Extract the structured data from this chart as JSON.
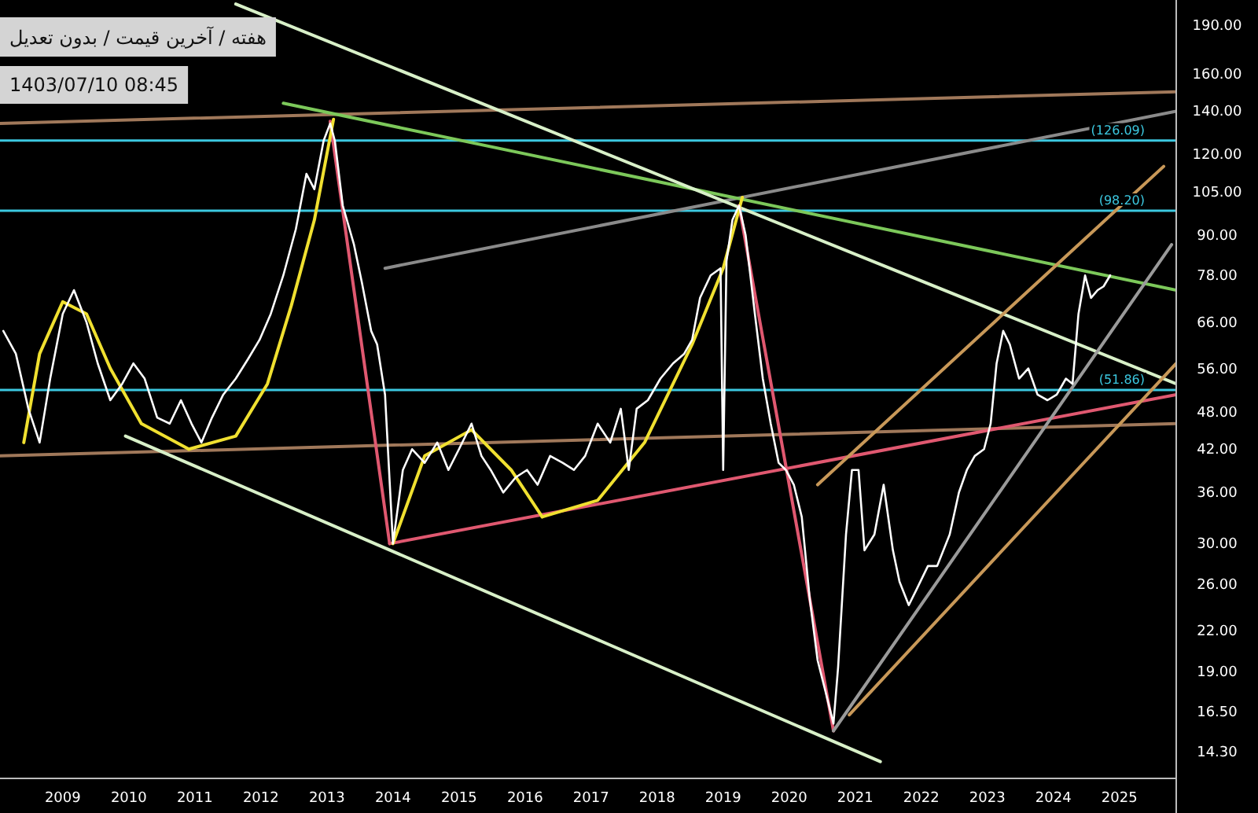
{
  "chart_data": {
    "type": "line",
    "log": "y",
    "grid": false,
    "marker": "none",
    "line_style": "solid",
    "annotations": [
      "هفته / آخرین قیمت / بدون تعدیل",
      "1403/07/10 08:45"
    ],
    "xlim": [
      2008.05,
      2025.86
    ],
    "xticks": [
      2009,
      2010,
      2011,
      2012,
      2013,
      2014,
      2015,
      2016,
      2017,
      2018,
      2019,
      2020,
      2021,
      2022,
      2023,
      2024,
      2025
    ],
    "ylim": [
      13,
      208
    ],
    "yticks": [
      {
        "value": 14.3,
        "label": "14.30"
      },
      {
        "value": 16.5,
        "label": "16.50"
      },
      {
        "value": 19,
        "label": "19.00"
      },
      {
        "value": 22,
        "label": "22.00"
      },
      {
        "value": 26,
        "label": "26.00"
      },
      {
        "value": 30,
        "label": "30.00"
      },
      {
        "value": 36,
        "label": "36.00"
      },
      {
        "value": 42,
        "label": "42.00"
      },
      {
        "value": 48,
        "label": "48.00"
      },
      {
        "value": 56,
        "label": "56.00"
      },
      {
        "value": 66,
        "label": "66.00"
      },
      {
        "value": 78,
        "label": "78.00"
      },
      {
        "value": 90,
        "label": "90.00"
      },
      {
        "value": 105,
        "label": "105.00"
      },
      {
        "value": 120,
        "label": "120.00"
      },
      {
        "value": 140,
        "label": "140.00"
      },
      {
        "value": 160,
        "label": "160.00"
      },
      {
        "value": 190,
        "label": "190.00"
      }
    ],
    "ref_lines": [
      {
        "axis": "y",
        "value": 126.09,
        "label": "(126.09)",
        "color": "#3cc8e0"
      },
      {
        "axis": "y",
        "value": 98.2,
        "label": "(98.20)",
        "color": "#3cc8e0"
      },
      {
        "axis": "y",
        "value": 51.86,
        "label": "(51.86)",
        "color": "#3cc8e0"
      }
    ],
    "series": [
      {
        "type": "line",
        "color": "#a0785a",
        "x": [
          2008.05,
          2025.86
        ],
        "values": [
          134,
          150
        ]
      },
      {
        "type": "line",
        "color": "#a0785a",
        "x": [
          2008.05,
          2025.86
        ],
        "values": [
          41,
          46
        ]
      },
      {
        "type": "line",
        "color": "#8a8a8a",
        "x": [
          2013.88,
          2025.86
        ],
        "values": [
          80,
          140
        ]
      },
      {
        "type": "line",
        "color": "#7cc85a",
        "x": [
          2012.34,
          2025.86
        ],
        "values": [
          144,
          74
        ]
      },
      {
        "type": "line",
        "color": "#d8f0c8",
        "x": [
          2011.62,
          2025.86
        ],
        "values": [
          205,
          53
        ]
      },
      {
        "type": "line",
        "color": "#d8f0c8",
        "x": [
          2009.95,
          2021.38
        ],
        "values": [
          44,
          13.8
        ]
      },
      {
        "type": "line",
        "color": "#e05870",
        "x": [
          2013.95,
          2025.86
        ],
        "values": [
          30,
          51
        ]
      },
      {
        "type": "line",
        "color": "#e05870",
        "x": [
          2013.05,
          2013.95
        ],
        "values": [
          135,
          30
        ]
      },
      {
        "type": "line",
        "color": "#e05870",
        "x": [
          2019.24,
          2020.67
        ],
        "values": [
          100,
          15.4
        ]
      },
      {
        "type": "line",
        "color": "#c89858",
        "x": [
          2020.43,
          2025.67
        ],
        "values": [
          37,
          115
        ]
      },
      {
        "type": "line",
        "color": "#c89858",
        "x": [
          2020.91,
          2025.86
        ],
        "values": [
          16.3,
          57
        ]
      },
      {
        "type": "line",
        "color": "#9a9a9a",
        "x": [
          2020.67,
          2025.79
        ],
        "values": [
          15.4,
          87
        ]
      },
      {
        "type": "line",
        "color": "#f0e030",
        "x": [
          2008.41,
          2008.65,
          2009.0,
          2009.36,
          2009.72,
          2010.19,
          2010.91
        ],
        "values": [
          43,
          59,
          71,
          68,
          56,
          46,
          42
        ]
      },
      {
        "type": "line",
        "color": "#f0e030",
        "x": [
          2010.91,
          2011.62,
          2012.1,
          2012.46,
          2012.81,
          2013.1
        ],
        "values": [
          42,
          44,
          53,
          70,
          95,
          136
        ]
      },
      {
        "type": "line",
        "color": "#f0e030",
        "x": [
          2014.0,
          2014.48,
          2015.19,
          2015.79,
          2016.26
        ],
        "values": [
          30,
          41,
          45,
          39,
          33
        ]
      },
      {
        "type": "line",
        "color": "#f0e030",
        "x": [
          2016.26,
          2017.1,
          2017.81,
          2018.53,
          2019.0,
          2019.29
        ],
        "values": [
          33,
          35,
          43,
          61,
          80,
          103
        ]
      },
      {
        "type": "line",
        "color": "#ffffff",
        "x": [
          2008.1,
          2008.29,
          2008.48,
          2008.65,
          2008.81,
          2009.0,
          2009.17,
          2009.36,
          2009.53,
          2009.72,
          2009.9,
          2010.07,
          2010.24,
          2010.43,
          2010.62,
          2010.79,
          2010.95,
          2011.1,
          2011.26,
          2011.43,
          2011.62,
          2011.81,
          2011.98,
          2012.15,
          2012.34,
          2012.53,
          2012.69,
          2012.81,
          2012.95,
          2013.05,
          2013.12,
          2013.24,
          2013.41,
          2013.53,
          2013.67,
          2013.76,
          2013.88,
          2014.0,
          2014.15,
          2014.29,
          2014.48,
          2014.67,
          2014.84,
          2015.0,
          2015.19,
          2015.34,
          2015.48,
          2015.67,
          2015.86,
          2016.03,
          2016.19,
          2016.38,
          2016.57,
          2016.74,
          2016.91,
          2017.1,
          2017.29,
          2017.45,
          2017.57,
          2017.69,
          2017.86,
          2018.05,
          2018.24,
          2018.41,
          2018.53,
          2018.65,
          2018.81,
          2018.96,
          2019.0,
          2019.05,
          2019.14,
          2019.24,
          2019.34,
          2019.48,
          2019.6,
          2019.72,
          2019.84,
          2019.95,
          2020.07,
          2020.19,
          2020.31,
          2020.43,
          2020.55,
          2020.67,
          2020.74,
          2020.86,
          2020.95,
          2021.05,
          2021.14,
          2021.29,
          2021.43,
          2021.57,
          2021.67,
          2021.81,
          2021.93,
          2022.1,
          2022.24,
          2022.43,
          2022.57,
          2022.69,
          2022.81,
          2022.95,
          2023.05,
          2023.14,
          2023.24,
          2023.34,
          2023.48,
          2023.62,
          2023.76,
          2023.91,
          2024.05,
          2024.19,
          2024.29,
          2024.38,
          2024.48,
          2024.57,
          2024.67,
          2024.76,
          2024.86
        ],
        "values": [
          64,
          59,
          48.5,
          43,
          54,
          68,
          74,
          66,
          57,
          50,
          53,
          57,
          54,
          47,
          46,
          50,
          46,
          43,
          47,
          51,
          54,
          58,
          62,
          68,
          78,
          92,
          112,
          106,
          126,
          134,
          126,
          100,
          87,
          76,
          64,
          61,
          51,
          30,
          39,
          42,
          40,
          43,
          39,
          42,
          46,
          41,
          39,
          36,
          38,
          39,
          37,
          41,
          40,
          39,
          41,
          46,
          43,
          48.5,
          39,
          48.5,
          50,
          54,
          57,
          59,
          62,
          72,
          78,
          80,
          39,
          82,
          95,
          100,
          90,
          68,
          54,
          46,
          40,
          39,
          37,
          33,
          24.7,
          19.8,
          17.7,
          15.8,
          19.3,
          31,
          39,
          39,
          29.3,
          31,
          37,
          29.3,
          26.2,
          24.1,
          25.5,
          27.7,
          27.7,
          31,
          36,
          39,
          41,
          42,
          46,
          57,
          64,
          61,
          54,
          56,
          51,
          50,
          51,
          54,
          53,
          68,
          78,
          72,
          74,
          75,
          78
        ]
      }
    ]
  }
}
